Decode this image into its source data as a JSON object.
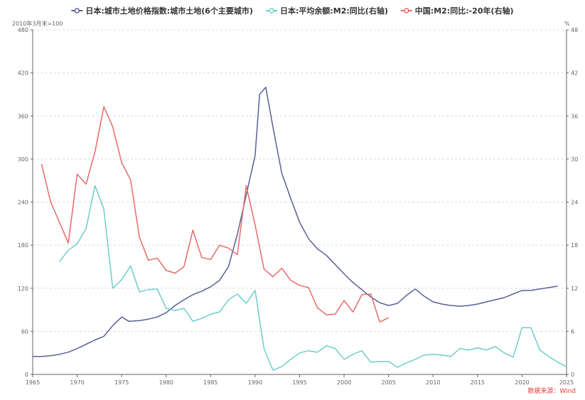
{
  "colors": {
    "land": "#5a5f96",
    "m2_japan": "#6ecec9",
    "m2_china": "#e86a6a",
    "source": "#e0403a",
    "axis": "#666666",
    "grid": "#d9d9d9"
  },
  "units": {
    "left": "2010年3月末=100",
    "right": "%"
  },
  "source_text": "数据来源：Wind",
  "chart_data": {
    "type": "line",
    "x_range": [
      1965,
      2025
    ],
    "x_ticks": [
      1965,
      1970,
      1975,
      1980,
      1985,
      1990,
      1995,
      2000,
      2005,
      2010,
      2015,
      2020,
      2025
    ],
    "y_left_range": [
      0,
      480
    ],
    "y_left_ticks": [
      0,
      60,
      120,
      180,
      240,
      300,
      360,
      420,
      480
    ],
    "y_right_range": [
      0,
      48
    ],
    "y_right_ticks": [
      0,
      6,
      12,
      18,
      24,
      30,
      36,
      42,
      48
    ],
    "grid": "horizontal dashed",
    "legend_position": "top",
    "series": [
      {
        "name": "日本:城市土地价格指数:城市土地(6个主要城市)",
        "axis": "left",
        "color": "#5a5f96",
        "points": [
          [
            1965,
            25
          ],
          [
            1966,
            25
          ],
          [
            1967,
            26
          ],
          [
            1968,
            28
          ],
          [
            1969,
            31
          ],
          [
            1970,
            36
          ],
          [
            1971,
            42
          ],
          [
            1972,
            48
          ],
          [
            1973,
            53
          ],
          [
            1974,
            68
          ],
          [
            1975,
            80
          ],
          [
            1975.8,
            74
          ],
          [
            1977,
            75
          ],
          [
            1978,
            77
          ],
          [
            1979,
            80
          ],
          [
            1980,
            86
          ],
          [
            1981,
            96
          ],
          [
            1982,
            104
          ],
          [
            1983,
            111
          ],
          [
            1984,
            116
          ],
          [
            1985,
            122
          ],
          [
            1986,
            131
          ],
          [
            1987,
            150
          ],
          [
            1988,
            195
          ],
          [
            1989,
            250
          ],
          [
            1990,
            305
          ],
          [
            1990.5,
            390
          ],
          [
            1991.2,
            400
          ],
          [
            1992,
            345
          ],
          [
            1993,
            280
          ],
          [
            1994,
            245
          ],
          [
            1995,
            212
          ],
          [
            1996,
            189
          ],
          [
            1997,
            175
          ],
          [
            1998,
            166
          ],
          [
            1999,
            153
          ],
          [
            2000,
            140
          ],
          [
            2001,
            128
          ],
          [
            2002,
            118
          ],
          [
            2003,
            108
          ],
          [
            2004,
            100
          ],
          [
            2005,
            96
          ],
          [
            2006,
            99
          ],
          [
            2007,
            110
          ],
          [
            2008,
            119
          ],
          [
            2009,
            109
          ],
          [
            2010,
            101
          ],
          [
            2011,
            98
          ],
          [
            2012,
            96
          ],
          [
            2013,
            95
          ],
          [
            2014,
            96
          ],
          [
            2015,
            98
          ],
          [
            2016,
            101
          ],
          [
            2017,
            104
          ],
          [
            2018,
            107
          ],
          [
            2019,
            112
          ],
          [
            2020,
            117
          ],
          [
            2021,
            117
          ],
          [
            2022,
            119
          ],
          [
            2023,
            121
          ],
          [
            2024,
            123
          ]
        ]
      },
      {
        "name": "日本:平均余额:M2:同比(右轴)",
        "axis": "right",
        "color": "#6ecec9",
        "points": [
          [
            1968,
            15.7
          ],
          [
            1969,
            17.3
          ],
          [
            1970,
            18.2
          ],
          [
            1971,
            20.3
          ],
          [
            1972,
            26.3
          ],
          [
            1973,
            23.0
          ],
          [
            1974,
            12.0
          ],
          [
            1975,
            13.2
          ],
          [
            1976,
            15.1
          ],
          [
            1977,
            11.5
          ],
          [
            1978,
            11.8
          ],
          [
            1979,
            11.9
          ],
          [
            1980,
            9.2
          ],
          [
            1981,
            8.9
          ],
          [
            1982,
            9.2
          ],
          [
            1983,
            7.4
          ],
          [
            1984,
            7.8
          ],
          [
            1985,
            8.4
          ],
          [
            1986,
            8.7
          ],
          [
            1987,
            10.4
          ],
          [
            1988,
            11.2
          ],
          [
            1989,
            9.9
          ],
          [
            1990,
            11.7
          ],
          [
            1991,
            3.6
          ],
          [
            1992,
            0.6
          ],
          [
            1993,
            1.1
          ],
          [
            1994,
            2.1
          ],
          [
            1995,
            3.0
          ],
          [
            1996,
            3.3
          ],
          [
            1997,
            3.1
          ],
          [
            1998,
            4.0
          ],
          [
            1999,
            3.6
          ],
          [
            2000,
            2.1
          ],
          [
            2001,
            2.8
          ],
          [
            2002,
            3.3
          ],
          [
            2003,
            1.7
          ],
          [
            2004,
            1.8
          ],
          [
            2005,
            1.8
          ],
          [
            2006,
            1.0
          ],
          [
            2007,
            1.6
          ],
          [
            2008,
            2.1
          ],
          [
            2009,
            2.7
          ],
          [
            2010,
            2.8
          ],
          [
            2011,
            2.7
          ],
          [
            2012,
            2.5
          ],
          [
            2013,
            3.6
          ],
          [
            2014,
            3.4
          ],
          [
            2015,
            3.7
          ],
          [
            2016,
            3.4
          ],
          [
            2017,
            3.9
          ],
          [
            2018,
            3.0
          ],
          [
            2019,
            2.4
          ],
          [
            2020,
            6.5
          ],
          [
            2021,
            6.5
          ],
          [
            2022,
            3.4
          ],
          [
            2023,
            2.5
          ],
          [
            2024,
            1.7
          ],
          [
            2025,
            1.1
          ]
        ]
      },
      {
        "name": "中国:M2:同比:-20年(右轴)",
        "axis": "right",
        "color": "#e86a6a",
        "points": [
          [
            1966,
            29.3
          ],
          [
            1967,
            24.1
          ],
          [
            1968,
            21.2
          ],
          [
            1969,
            18.3
          ],
          [
            1970,
            27.9
          ],
          [
            1971,
            26.5
          ],
          [
            1972,
            31.0
          ],
          [
            1973,
            37.3
          ],
          [
            1974,
            34.5
          ],
          [
            1975,
            29.5
          ],
          [
            1976,
            27.1
          ],
          [
            1977,
            19.1
          ],
          [
            1978,
            15.9
          ],
          [
            1979,
            16.2
          ],
          [
            1980,
            14.5
          ],
          [
            1981,
            14.1
          ],
          [
            1982,
            15.0
          ],
          [
            1983,
            20.1
          ],
          [
            1984,
            16.3
          ],
          [
            1985,
            16.0
          ],
          [
            1986,
            18.0
          ],
          [
            1987,
            17.6
          ],
          [
            1988,
            16.7
          ],
          [
            1989,
            26.3
          ],
          [
            1990,
            20.8
          ],
          [
            1991,
            14.7
          ],
          [
            1992,
            13.6
          ],
          [
            1993,
            14.8
          ],
          [
            1994,
            13.1
          ],
          [
            1995,
            12.4
          ],
          [
            1996,
            12.1
          ],
          [
            1997,
            9.3
          ],
          [
            1998,
            8.3
          ],
          [
            1999,
            8.4
          ],
          [
            2000,
            10.3
          ],
          [
            2001,
            8.7
          ],
          [
            2002,
            11.1
          ],
          [
            2003,
            11.2
          ],
          [
            2004,
            7.3
          ],
          [
            2005,
            7.9
          ]
        ]
      }
    ]
  }
}
